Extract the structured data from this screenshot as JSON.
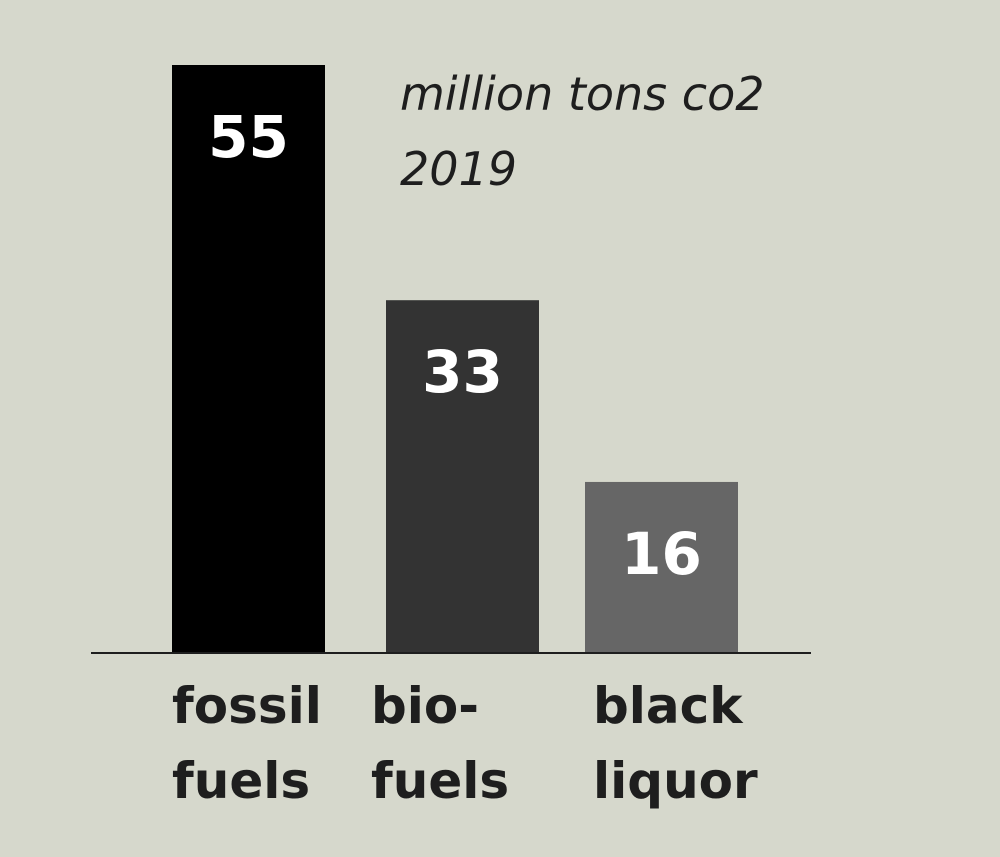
{
  "chart_data": {
    "type": "bar",
    "title": "",
    "unit_label": "million tons co2",
    "year_label": "2019",
    "categories": [
      [
        "fossil",
        "fuels"
      ],
      [
        "bio-",
        "fuels"
      ],
      [
        "black",
        "liquor"
      ]
    ],
    "values": [
      55,
      33,
      16
    ],
    "value_labels": [
      "55",
      "33",
      "16"
    ],
    "bar_colors": [
      "#000000",
      "#333333",
      "#666666"
    ],
    "value_label_color": "#ffffff",
    "ylim": [
      0,
      55
    ],
    "grid": false,
    "legend": "none"
  }
}
